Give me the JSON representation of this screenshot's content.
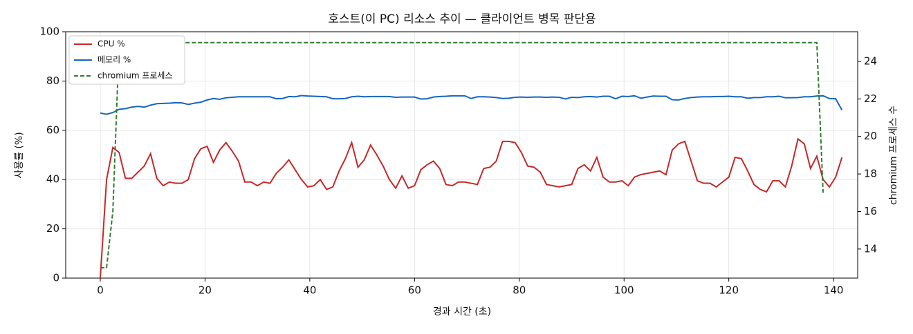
{
  "chart_data": {
    "type": "line",
    "title": "호스트(이 PC) 리소스 추이 — 클라이언트 병목 판단용",
    "x_label": "경과 시간 (초)",
    "y_label": "사용률 (%)",
    "y2_label": "chromium 프로세스 수",
    "xlim": [
      -6.6,
      144.6
    ],
    "ylim": [
      0,
      100
    ],
    "y2lim": [
      12.45,
      25.58
    ],
    "xticks": [
      0,
      20,
      40,
      60,
      80,
      100,
      120,
      140
    ],
    "yticks": [
      0,
      20,
      40,
      60,
      80,
      100
    ],
    "y2ticks": [
      14,
      16,
      18,
      20,
      22,
      24
    ],
    "grid": true,
    "legend": "upper-left",
    "x": [
      0,
      1.2,
      2.4,
      3.6,
      4.8,
      6,
      7.2,
      8.4,
      9.6,
      10.8,
      12,
      13.2,
      14.4,
      15.6,
      16.8,
      18,
      19.2,
      20.4,
      21.6,
      22.8,
      24,
      25.2,
      26.4,
      27.6,
      28.8,
      30,
      31.2,
      32.4,
      33.6,
      34.8,
      36,
      37.2,
      38.4,
      39.6,
      40.8,
      42,
      43.2,
      44.4,
      45.6,
      46.8,
      48,
      49.2,
      50.4,
      51.6,
      52.8,
      54,
      55.2,
      56.4,
      57.6,
      58.8,
      60,
      61.2,
      62.4,
      63.6,
      64.8,
      66,
      67.2,
      68.4,
      69.6,
      70.8,
      72,
      73.2,
      74.4,
      75.6,
      76.8,
      78,
      79.2,
      80.4,
      81.6,
      82.8,
      84,
      85.2,
      86.4,
      87.6,
      88.8,
      90,
      91.2,
      92.4,
      93.6,
      94.8,
      96,
      97.2,
      98.4,
      99.6,
      100.8,
      102,
      103.2,
      104.4,
      105.6,
      106.8,
      108,
      109.2,
      110.4,
      111.6,
      112.8,
      114,
      115.2,
      116.4,
      117.6,
      118.8,
      120,
      121.2,
      122.4,
      123.6,
      124.8,
      126,
      127.2,
      128.4,
      129.6,
      130.8,
      132,
      133.2,
      134.4,
      135.6,
      136.8,
      138,
      139.2,
      140.4,
      141.6
    ],
    "series": [
      {
        "name": "CPU %",
        "color": "#c62828",
        "style": "solid",
        "values": [
          0,
          40,
          53,
          51,
          40.5,
          40.5,
          43,
          45.5,
          50.5,
          40.5,
          37.5,
          39,
          38.5,
          38.5,
          40,
          48.5,
          52.5,
          53.5,
          47,
          52,
          55,
          51.5,
          47.5,
          39,
          39,
          37.5,
          39,
          38.5,
          42.5,
          45,
          48,
          44,
          40,
          37,
          37.5,
          40,
          36,
          37,
          43.5,
          48.5,
          55,
          45,
          48,
          54,
          50,
          45.5,
          40,
          36.5,
          41.5,
          36.5,
          37.5,
          44,
          46,
          47.5,
          44.5,
          38,
          37.5,
          39,
          39,
          38.5,
          38,
          44.5,
          45,
          47.5,
          55.5,
          55.5,
          55,
          51,
          45.5,
          45,
          43,
          38,
          37.5,
          37,
          37.5,
          38,
          44.5,
          46,
          43.5,
          49,
          41,
          39,
          39,
          39.5,
          37.5,
          41,
          42,
          42.5,
          43,
          43.5,
          42,
          52,
          54.5,
          55.5,
          47.5,
          39.5,
          38.5,
          38.5,
          37,
          39,
          41,
          49,
          48.5,
          43.5,
          38,
          36,
          35,
          39.5,
          39.5,
          37,
          45.5,
          56.5,
          54.5,
          44.5,
          49.5,
          40,
          37,
          41,
          49
        ]
      },
      {
        "name": "메모리 %",
        "color": "#1565c0",
        "style": "solid",
        "values": [
          67,
          66.5,
          67.2,
          68.5,
          68.8,
          69.4,
          69.7,
          69.4,
          70.2,
          70.8,
          70.9,
          71,
          71.2,
          71.1,
          70.5,
          71,
          71.4,
          72.3,
          72.9,
          72.6,
          73.2,
          73.4,
          73.6,
          73.6,
          73.6,
          73.6,
          73.6,
          73.6,
          72.8,
          72.9,
          73.7,
          73.6,
          74.1,
          73.9,
          73.8,
          73.7,
          73.6,
          72.8,
          72.8,
          72.9,
          73.6,
          73.8,
          73.6,
          73.7,
          73.7,
          73.7,
          73.7,
          73.4,
          73.5,
          73.5,
          73.5,
          72.7,
          72.8,
          73.5,
          73.7,
          73.8,
          74,
          74,
          74,
          72.9,
          73.6,
          73.6,
          73.5,
          73.3,
          72.9,
          73,
          73.4,
          73.5,
          73.4,
          73.5,
          73.5,
          73.4,
          73.5,
          73.4,
          72.7,
          73.4,
          73.3,
          73.6,
          73.7,
          73.5,
          73.8,
          73.8,
          72.8,
          73.8,
          73.7,
          74,
          73,
          73.5,
          73.9,
          73.8,
          73.8,
          72.4,
          72.3,
          72.9,
          73.3,
          73.5,
          73.6,
          73.6,
          73.7,
          73.7,
          73.8,
          73.6,
          73.6,
          73,
          73.3,
          73.3,
          73.6,
          73.6,
          73.8,
          73.2,
          73.2,
          73.3,
          73.6,
          73.6,
          73.9,
          74,
          72.9,
          72.8,
          68.2
        ]
      },
      {
        "name": "chromium 프로세스",
        "color": "#2e7d32",
        "style": "dashed",
        "axis": "y2",
        "values": [
          13,
          13,
          16,
          25,
          25,
          25,
          25,
          25,
          25,
          25,
          25,
          25,
          25,
          25,
          25,
          25,
          25,
          25,
          25,
          25,
          25,
          25,
          25,
          25,
          25,
          25,
          25,
          25,
          25,
          25,
          25,
          25,
          25,
          25,
          25,
          25,
          25,
          25,
          25,
          25,
          25,
          25,
          25,
          25,
          25,
          25,
          25,
          25,
          25,
          25,
          25,
          25,
          25,
          25,
          25,
          25,
          25,
          25,
          25,
          25,
          25,
          25,
          25,
          25,
          25,
          25,
          25,
          25,
          25,
          25,
          25,
          25,
          25,
          25,
          25,
          25,
          25,
          25,
          25,
          25,
          25,
          25,
          25,
          25,
          25,
          25,
          25,
          25,
          25,
          25,
          25,
          25,
          25,
          25,
          25,
          25,
          25,
          25,
          25,
          25,
          25,
          25,
          25,
          25,
          25,
          25,
          25,
          25,
          25,
          25,
          25,
          25,
          25,
          25,
          25,
          17,
          null,
          null,
          null
        ]
      }
    ]
  }
}
